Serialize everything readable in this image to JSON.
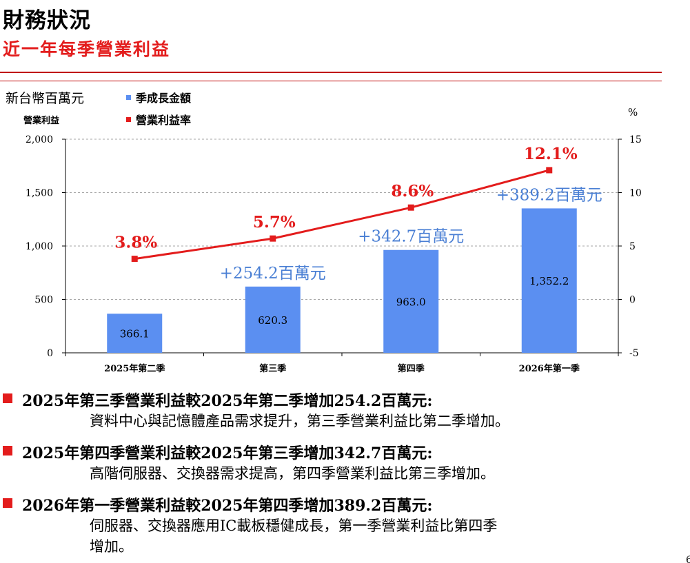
{
  "slide": {
    "title": "財務狀況",
    "subtitle": "近一年每季營業利益",
    "page_number": "6"
  },
  "colors": {
    "accent_red": "#e31c1c",
    "bar_blue": "#5b8ff1",
    "growth_label_blue": "#4a7fd4",
    "rule_red": "#c00000"
  },
  "chart_data": {
    "type": "bar",
    "unit_label": "新台幣百萬元",
    "ylabel": "營業利益",
    "y2label": "%",
    "categories": [
      "2025年第二季",
      "第三季",
      "第四季",
      "2026年第一季"
    ],
    "legend": [
      "季成長金額",
      "營業利益率"
    ],
    "legend_placement": "top-left",
    "series": [
      {
        "name": "季成長金額",
        "type": "bar",
        "axis": "left",
        "values": [
          366.1,
          620.3,
          963.0,
          1352.2
        ],
        "value_labels": [
          "366.1",
          "620.3",
          "963.0",
          "1,352.2"
        ],
        "growth_labels": [
          "",
          "+254.2百萬元",
          "+342.7百萬元",
          "+389.2百萬元"
        ]
      },
      {
        "name": "營業利益率",
        "type": "line",
        "axis": "right",
        "values": [
          3.8,
          5.7,
          8.6,
          12.1
        ],
        "value_labels": [
          "3.8%",
          "5.7%",
          "8.6%",
          "12.1%"
        ]
      }
    ],
    "ylim": [
      0,
      2000
    ],
    "yticks": [
      0,
      500,
      1000,
      1500,
      2000
    ],
    "ytick_labels": [
      "0",
      "500",
      "1,000",
      "1,500",
      "2,000"
    ],
    "y2lim": [
      -5,
      15
    ],
    "y2ticks": [
      -5,
      0,
      5,
      10,
      15
    ],
    "y2tick_labels": [
      "-5",
      "0",
      "5",
      "10",
      "15"
    ],
    "grid": true
  },
  "bullets": [
    {
      "heading": "2025年第三季營業利益較2025年第二季增加254.2百萬元:",
      "lines": [
        "資料中心與記憶體產品需求提升，第三季營業利益比第二季增加。"
      ]
    },
    {
      "heading": "2025年第四季營業利益較2025年第三季增加342.7百萬元:",
      "lines": [
        "高階伺服器、交換器需求提高，第四季營業利益比第三季增加。"
      ]
    },
    {
      "heading": "2026年第一季營業利益較2025年第四季增加389.2百萬元:",
      "lines": [
        "伺服器、交換器應用IC載板穩健成長，第一季營業利益比第四季",
        "增加。"
      ]
    }
  ]
}
